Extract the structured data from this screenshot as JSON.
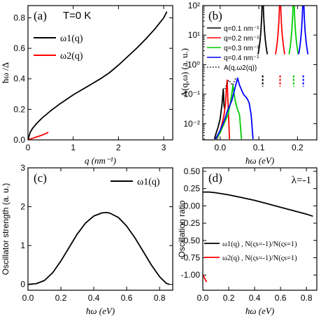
{
  "chart_data": [
    {
      "type": "line",
      "panel_label": "(a)",
      "annotation": "T=0 K",
      "xlabel": "q (nm⁻¹)",
      "ylabel": "ħω /Δ",
      "xlim": [
        0,
        3.2
      ],
      "ylim": [
        0,
        0.88
      ],
      "xticks": [
        "0",
        "1",
        "2",
        "3"
      ],
      "yticks": [
        "0.0",
        "0.2",
        "0.4",
        "0.6",
        "0.8"
      ],
      "legend_position": "top-left",
      "series": [
        {
          "name": "ω1(q)",
          "color": "#000000",
          "x": [
            0,
            0.05,
            0.1,
            0.2,
            0.3,
            0.4,
            0.5,
            0.6,
            0.7,
            0.8,
            0.9,
            1.0,
            1.2,
            1.4,
            1.6,
            1.8,
            2.0,
            2.2,
            2.4,
            2.6,
            2.8,
            3.0,
            3.07
          ],
          "y": [
            0,
            0.05,
            0.075,
            0.11,
            0.14,
            0.165,
            0.19,
            0.212,
            0.235,
            0.255,
            0.275,
            0.295,
            0.33,
            0.365,
            0.4,
            0.44,
            0.49,
            0.545,
            0.6,
            0.66,
            0.725,
            0.8,
            0.84
          ]
        },
        {
          "name": "ω2(q)",
          "color": "#ff0000",
          "x": [
            0,
            0.1,
            0.2,
            0.3,
            0.4,
            0.45
          ],
          "y": [
            0,
            0.01,
            0.02,
            0.03,
            0.042,
            0.05
          ]
        }
      ]
    },
    {
      "type": "line",
      "panel_label": "(b)",
      "xlabel": "ħω (eV)",
      "ylabel": "A(q,ω) (a. u.)",
      "xlim": [
        -0.045,
        0.25
      ],
      "ylim_log10": [
        -2.55,
        2
      ],
      "y_scale": "log",
      "xticks": [
        "0.0",
        "0.1",
        "0.2"
      ],
      "yticks": [
        "10⁻²",
        "10⁻¹",
        "10⁰",
        "10¹",
        "10²"
      ],
      "legend_position": "top-left",
      "series": [
        {
          "name": "q=0.1 nm⁻¹",
          "color": "#000000",
          "center": 0.11,
          "x": [
            -0.015,
            -0.01,
            -0.005,
            0.0,
            0.005,
            0.008,
            0.01,
            0.012
          ],
          "y": [
            0.003,
            0.005,
            0.008,
            0.015,
            0.05,
            0.15,
            0.04,
            0.03
          ]
        },
        {
          "name": "q=0.2 nm⁻¹",
          "color": "#ff0000",
          "center": 0.155,
          "x": [
            -0.008,
            0.0,
            0.005,
            0.01,
            0.014,
            0.016,
            0.018,
            0.02,
            0.022,
            0.024
          ],
          "y": [
            0.003,
            0.006,
            0.01,
            0.02,
            0.05,
            0.15,
            0.3,
            0.06,
            0.015,
            0.003
          ]
        },
        {
          "name": "q=0.3 nm⁻¹",
          "color": "#00cc00",
          "center": 0.19,
          "x": [
            -0.01,
            0.0,
            0.01,
            0.02,
            0.025,
            0.03,
            0.033,
            0.036,
            0.04,
            0.045,
            0.05,
            0.055
          ],
          "y": [
            0.003,
            0.005,
            0.01,
            0.02,
            0.04,
            0.1,
            0.2,
            0.1,
            0.05,
            0.03,
            0.02,
            0.003
          ]
        },
        {
          "name": "q=0.4 nm⁻¹",
          "color": "#0000ff",
          "center": 0.215,
          "x": [
            -0.012,
            0.0,
            0.01,
            0.02,
            0.03,
            0.04,
            0.045,
            0.05,
            0.06,
            0.07,
            0.075,
            0.08,
            0.085
          ],
          "y": [
            0.003,
            0.006,
            0.012,
            0.03,
            0.06,
            0.2,
            0.35,
            0.2,
            0.1,
            0.07,
            0.05,
            0.02,
            0.003
          ]
        },
        {
          "name": "A(q,ω2(q))",
          "color": "#000000",
          "dotted": true,
          "x": [
            0.012,
            0.022,
            0.032,
            0.04
          ],
          "y": [
            0.15,
            0.3,
            0.2,
            0.35
          ]
        }
      ]
    },
    {
      "type": "line",
      "panel_label": "(c)",
      "xlabel": "ħω (eV)",
      "ylabel": "Oscillator strength (a. u.)",
      "xlim": [
        0,
        0.88
      ],
      "ylim": [
        -0.15,
        3
      ],
      "xticks": [
        "0.0",
        "0.2",
        "0.4",
        "0.6",
        "0.8"
      ],
      "yticks": [
        "0",
        "1",
        "2",
        "3"
      ],
      "legend_position": "top-right",
      "series": [
        {
          "name": "ω1(q)",
          "color": "#000000",
          "x": [
            0,
            0.05,
            0.1,
            0.15,
            0.2,
            0.25,
            0.3,
            0.35,
            0.4,
            0.45,
            0.48,
            0.5,
            0.55,
            0.6,
            0.65,
            0.7,
            0.75,
            0.8,
            0.84,
            0.86
          ],
          "y": [
            0,
            0.02,
            0.1,
            0.3,
            0.6,
            0.95,
            1.3,
            1.58,
            1.76,
            1.84,
            1.85,
            1.83,
            1.72,
            1.5,
            1.2,
            0.85,
            0.5,
            0.2,
            0.03,
            0
          ]
        }
      ]
    },
    {
      "type": "line",
      "panel_label": "(d)",
      "annotation": "λ=-1",
      "xlabel": "ħω (eV)",
      "ylabel": "Oscillation ratio",
      "xlim": [
        0,
        0.88
      ],
      "ylim": [
        -1.22,
        0.55
      ],
      "xticks": [
        "0.0",
        "0.2",
        "0.4",
        "0.6",
        "0.8"
      ],
      "yticks": [
        "-1.00",
        "-0.75",
        "-0.50",
        "-0.25",
        "0.00",
        "0.25",
        "0.50"
      ],
      "legend_position": "lower-right",
      "series": [
        {
          "name": "ω1(q) , N(ςs=-1)/N(ςs=1)",
          "color": "#000000",
          "x": [
            0,
            0.05,
            0.1,
            0.2,
            0.3,
            0.4,
            0.5,
            0.6,
            0.7,
            0.8,
            0.85
          ],
          "y": [
            0.2,
            0.2,
            0.19,
            0.16,
            0.12,
            0.08,
            0.03,
            -0.02,
            -0.07,
            -0.12,
            -0.15
          ]
        },
        {
          "name": "ω2(q) , N(ςs=-1)/N(ςs=1)",
          "color": "#ff0000",
          "x": [
            0,
            0.01,
            0.02,
            0.03
          ],
          "y": [
            -1.0,
            -1.03,
            -1.07,
            -1.1
          ]
        }
      ]
    }
  ]
}
